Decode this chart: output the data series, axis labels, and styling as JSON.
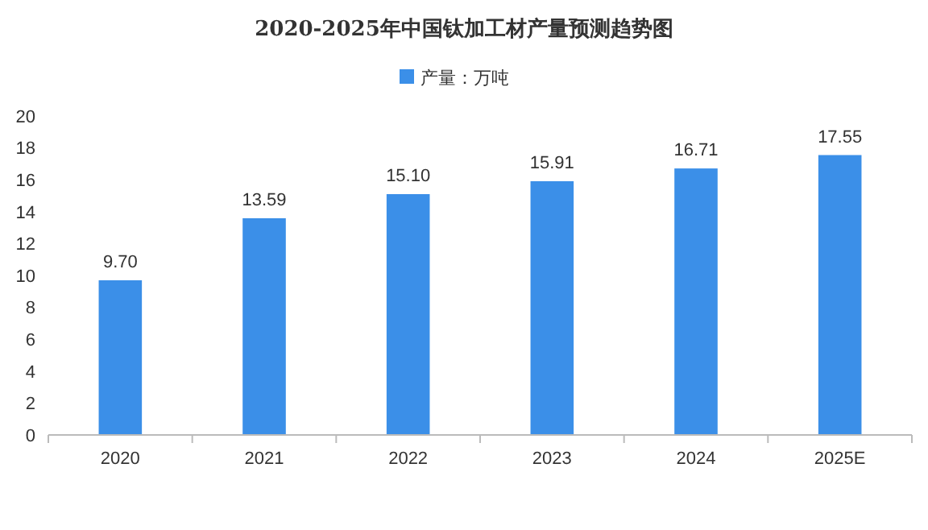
{
  "chart_data": {
    "type": "bar",
    "title": "2020-2025年中国钛加工材产量预测趋势图",
    "categories": [
      "2020",
      "2021",
      "2022",
      "2023",
      "2024",
      "2025E"
    ],
    "series": [
      {
        "name": "产量：万吨",
        "color": "#3b8fe8",
        "values": [
          9.7,
          13.59,
          15.1,
          15.91,
          16.71,
          17.55
        ],
        "value_labels": [
          "9.70",
          "13.59",
          "15.10",
          "15.91",
          "16.71",
          "17.55"
        ]
      }
    ],
    "ylim": [
      0,
      20
    ],
    "yticks": [
      0,
      2,
      4,
      6,
      8,
      10,
      12,
      14,
      16,
      18,
      20
    ],
    "legend": "top",
    "grid": false
  }
}
